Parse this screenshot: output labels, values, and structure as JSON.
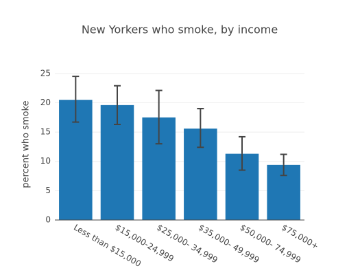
{
  "chart_data": {
    "type": "bar",
    "title": "New Yorkers who smoke, by income",
    "y_label": "percent who smoke",
    "categories": [
      "Less than $15,000",
      "$15,000-24,999",
      "$25,000- 34,999",
      "$35,000- 49,999",
      "$50,000- 74,999",
      "$75,000+"
    ],
    "values": [
      20.5,
      19.6,
      17.5,
      15.6,
      11.3,
      9.4
    ],
    "errors_plus": [
      4.0,
      3.3,
      4.6,
      3.4,
      2.9,
      1.8
    ],
    "errors_minus": [
      3.8,
      3.3,
      4.5,
      3.2,
      2.8,
      1.8
    ],
    "color": "#1f77b4",
    "error_color": "#444444",
    "ylim": [
      0,
      25.8
    ],
    "yticks": [
      0,
      5,
      10,
      15,
      20,
      25
    ],
    "grid": true
  }
}
